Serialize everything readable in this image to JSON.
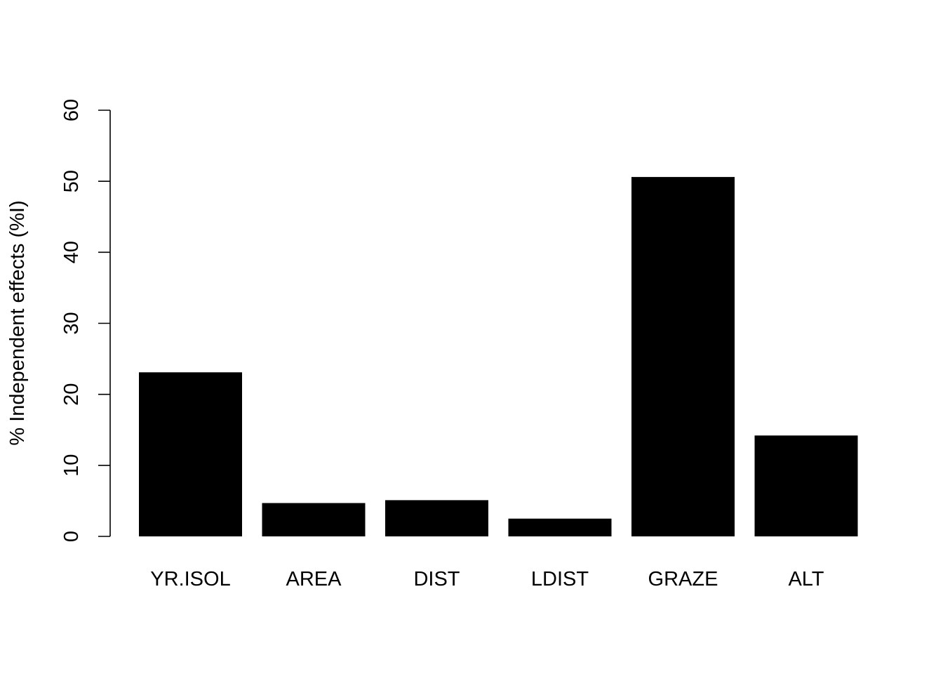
{
  "chart_data": {
    "type": "bar",
    "title": "",
    "xlabel": "",
    "ylabel": "% Independent effects (%I)",
    "ylim": [
      0,
      60
    ],
    "yticks": [
      "0",
      "10",
      "20",
      "30",
      "40",
      "50",
      "60"
    ],
    "categories": [
      "YR.ISOL",
      "AREA",
      "DIST",
      "LDIST",
      "GRAZE",
      "ALT"
    ],
    "values": [
      23.1,
      4.7,
      5.1,
      2.5,
      50.6,
      14.2
    ],
    "bar_color": "#000000",
    "grid": false,
    "legend": "none"
  }
}
